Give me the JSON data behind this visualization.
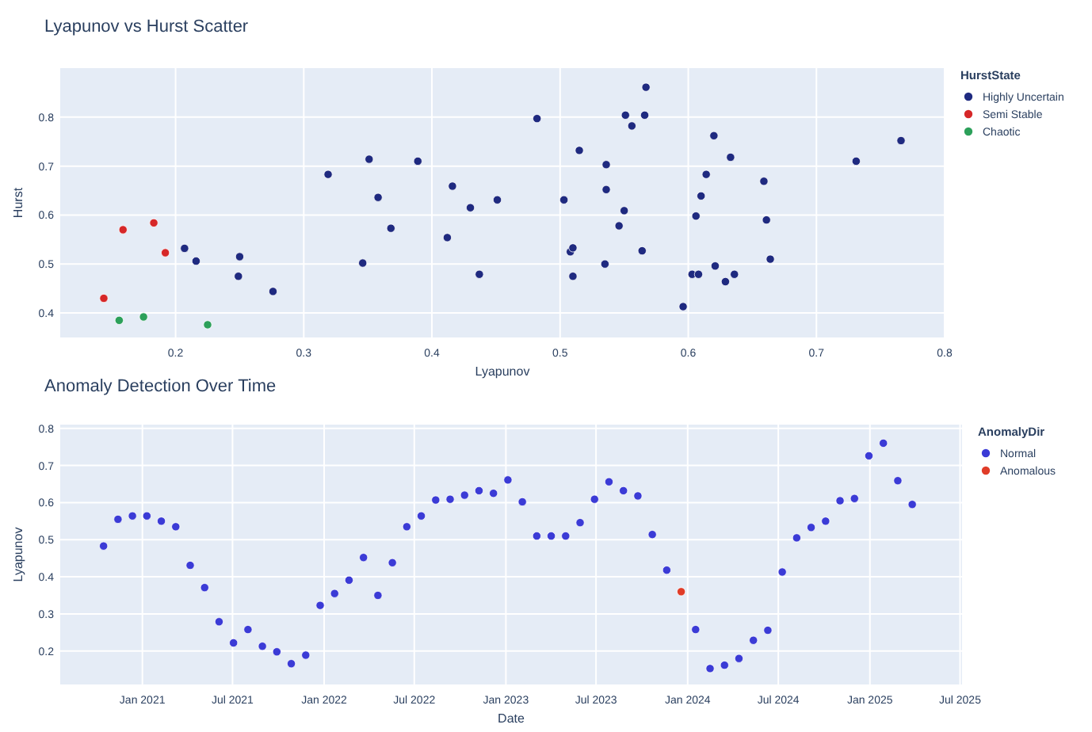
{
  "chart_data": [
    {
      "type": "scatter",
      "title": "Lyapunov vs Hurst Scatter",
      "xlabel": "Lyapunov",
      "ylabel": "Hurst",
      "legend_title": "HurstState",
      "legend": "top right",
      "grid": true,
      "marker": "circle",
      "xlim": [
        0.11,
        0.8
      ],
      "ylim": [
        0.35,
        0.9
      ],
      "xticks": [
        0.2,
        0.3,
        0.4,
        0.5,
        0.6,
        0.7,
        0.8
      ],
      "yticks": [
        0.4,
        0.5,
        0.6,
        0.7,
        0.8
      ],
      "series": [
        {
          "name": "Highly Uncertain",
          "color": "#1f2a80",
          "x": [
            0.207,
            0.216,
            0.25,
            0.249,
            0.276,
            0.319,
            0.346,
            0.351,
            0.358,
            0.368,
            0.389,
            0.412,
            0.416,
            0.43,
            0.437,
            0.451,
            0.482,
            0.503,
            0.508,
            0.51,
            0.51,
            0.515,
            0.535,
            0.536,
            0.536,
            0.546,
            0.55,
            0.551,
            0.556,
            0.564,
            0.566,
            0.567,
            0.596,
            0.603,
            0.608,
            0.606,
            0.61,
            0.614,
            0.62,
            0.621,
            0.629,
            0.633,
            0.636,
            0.659,
            0.661,
            0.664,
            0.731,
            0.766
          ],
          "values": [
            0.532,
            0.506,
            0.515,
            0.475,
            0.444,
            0.683,
            0.502,
            0.714,
            0.636,
            0.573,
            0.71,
            0.554,
            0.659,
            0.615,
            0.479,
            0.631,
            0.797,
            0.631,
            0.525,
            0.533,
            0.475,
            0.732,
            0.5,
            0.703,
            0.652,
            0.578,
            0.609,
            0.804,
            0.782,
            0.527,
            0.804,
            0.861,
            0.413,
            0.479,
            0.479,
            0.598,
            0.639,
            0.683,
            0.762,
            0.496,
            0.464,
            0.718,
            0.479,
            0.669,
            0.59,
            0.51,
            0.71,
            0.752
          ]
        },
        {
          "name": "Semi Stable",
          "color": "#d62728",
          "x": [
            0.144,
            0.159,
            0.183,
            0.192
          ],
          "values": [
            0.43,
            0.57,
            0.584,
            0.523
          ]
        },
        {
          "name": "Chaotic",
          "color": "#2ca05a",
          "x": [
            0.156,
            0.175,
            0.225
          ],
          "values": [
            0.385,
            0.392,
            0.376
          ]
        }
      ]
    },
    {
      "type": "scatter",
      "title": "Anomaly Detection Over Time",
      "xlabel": "Date",
      "ylabel": "Lyapunov",
      "legend_title": "AnomalyDir",
      "legend": "top right",
      "grid": true,
      "marker": "circle",
      "xlim": [
        "2020-07-20",
        "2025-07-05"
      ],
      "ylim": [
        0.11,
        0.81
      ],
      "xticks": [
        {
          "value": "2021-01-01",
          "label": "Jan 2021"
        },
        {
          "value": "2021-07-01",
          "label": "Jul 2021"
        },
        {
          "value": "2022-01-01",
          "label": "Jan 2022"
        },
        {
          "value": "2022-07-01",
          "label": "Jul 2022"
        },
        {
          "value": "2023-01-01",
          "label": "Jan 2023"
        },
        {
          "value": "2023-07-01",
          "label": "Jul 2023"
        },
        {
          "value": "2024-01-01",
          "label": "Jan 2024"
        },
        {
          "value": "2024-07-01",
          "label": "Jul 2024"
        },
        {
          "value": "2025-01-01",
          "label": "Jan 2025"
        },
        {
          "value": "2025-07-01",
          "label": "Jul 2025"
        }
      ],
      "yticks": [
        0.2,
        0.3,
        0.4,
        0.5,
        0.6,
        0.7,
        0.8
      ],
      "series": [
        {
          "name": "Normal",
          "color": "#3b3bd6",
          "x": [
            "2020-10-15",
            "2020-11-13",
            "2020-12-12",
            "2021-01-10",
            "2021-02-08",
            "2021-03-09",
            "2021-04-07",
            "2021-05-06",
            "2021-06-04",
            "2021-07-03",
            "2021-08-01",
            "2021-08-30",
            "2021-09-28",
            "2021-10-27",
            "2021-11-25",
            "2021-12-24",
            "2022-01-22",
            "2022-02-20",
            "2022-03-21",
            "2022-04-19",
            "2022-05-18",
            "2022-06-16",
            "2022-07-15",
            "2022-08-13",
            "2022-09-11",
            "2022-10-10",
            "2022-11-08",
            "2022-12-07",
            "2023-01-05",
            "2023-02-03",
            "2023-03-04",
            "2023-04-02",
            "2023-05-01",
            "2023-05-30",
            "2023-06-28",
            "2023-07-27",
            "2023-08-25",
            "2023-09-23",
            "2023-10-22",
            "2023-11-20",
            "2024-01-17",
            "2024-02-15",
            "2024-03-15",
            "2024-04-13",
            "2024-05-12",
            "2024-06-10",
            "2024-07-09",
            "2024-08-07",
            "2024-09-05",
            "2024-10-04",
            "2024-11-02",
            "2024-12-01",
            "2024-12-30",
            "2025-01-28",
            "2025-02-26",
            "2025-03-27"
          ],
          "values": [
            0.483,
            0.555,
            0.564,
            0.564,
            0.55,
            0.535,
            0.431,
            0.371,
            0.279,
            0.222,
            0.258,
            0.213,
            0.198,
            0.166,
            0.189,
            0.323,
            0.355,
            0.391,
            0.452,
            0.35,
            0.438,
            0.535,
            0.564,
            0.607,
            0.609,
            0.62,
            0.632,
            0.625,
            0.661,
            0.602,
            0.51,
            0.51,
            0.51,
            0.546,
            0.609,
            0.656,
            0.632,
            0.618,
            0.514,
            0.418,
            0.258,
            0.153,
            0.162,
            0.18,
            0.229,
            0.256,
            0.413,
            0.505,
            0.533,
            0.55,
            0.605,
            0.611,
            0.726,
            0.76,
            0.659,
            0.595
          ]
        },
        {
          "name": "Anomalous",
          "color": "#e03c28",
          "x": [
            "2023-12-19"
          ],
          "values": [
            0.36
          ]
        }
      ]
    }
  ]
}
